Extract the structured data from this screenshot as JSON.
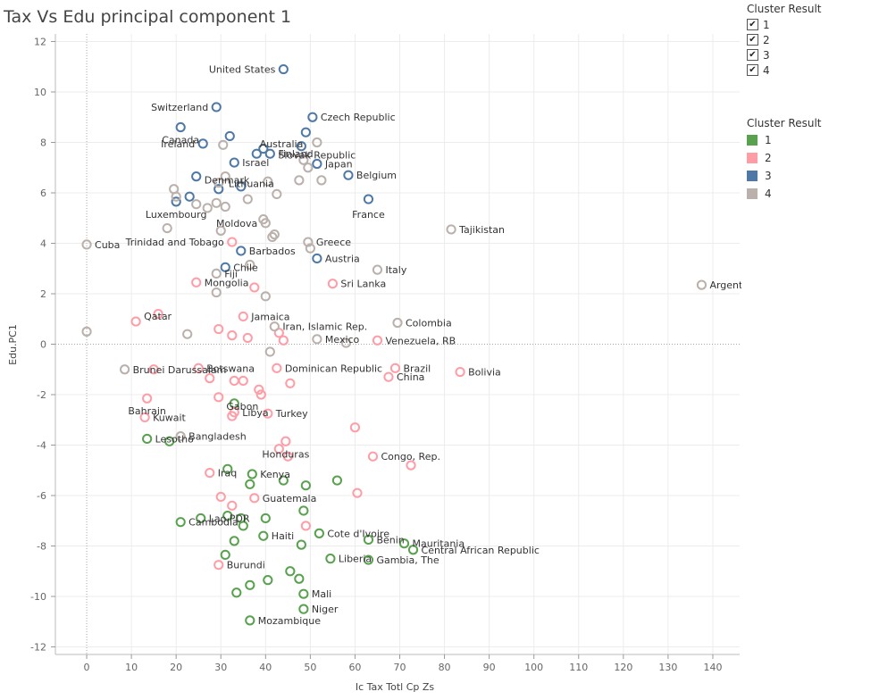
{
  "title": "Tax Vs Edu principal component 1",
  "filter_legend": {
    "title": "Cluster Result",
    "items": [
      {
        "label": "1",
        "check": "✔"
      },
      {
        "label": "2",
        "check": "✔"
      },
      {
        "label": "3",
        "check": "✔"
      },
      {
        "label": "4",
        "check": "✔"
      }
    ]
  },
  "color_legend": {
    "title": "Cluster Result",
    "items": [
      {
        "label": "1",
        "color": "#59a14f"
      },
      {
        "label": "2",
        "color": "#ff9da7"
      },
      {
        "label": "3",
        "color": "#4e79a7"
      },
      {
        "label": "4",
        "color": "#bab0ac"
      }
    ]
  },
  "chart_data": {
    "type": "scatter",
    "xlabel": "Ic Tax Totl Cp Zs",
    "ylabel": "Edu.PC1",
    "xlim": [
      -7,
      146
    ],
    "ylim": [
      -12.3,
      12.3
    ],
    "xticks": [
      0,
      10,
      20,
      30,
      40,
      50,
      60,
      70,
      80,
      90,
      100,
      110,
      120,
      130,
      140
    ],
    "yticks": [
      12,
      10,
      8,
      6,
      4,
      2,
      0,
      -2,
      -4,
      -6,
      -8,
      -10,
      -12
    ],
    "grid": true,
    "legend": "right",
    "clusters": [
      {
        "label": "1",
        "color": "#59a14f",
        "points": [
          {
            "x": 13.5,
            "y": -3.75,
            "label": "Lesotho"
          },
          {
            "x": 18.5,
            "y": -3.85
          },
          {
            "x": 33,
            "y": -2.35
          },
          {
            "x": 31.5,
            "y": -4.95
          },
          {
            "x": 37,
            "y": -5.15,
            "label": "Kenya"
          },
          {
            "x": 36.5,
            "y": -5.55
          },
          {
            "x": 44,
            "y": -5.4
          },
          {
            "x": 49,
            "y": -5.6
          },
          {
            "x": 56,
            "y": -5.4
          },
          {
            "x": 21,
            "y": -7.05,
            "label": "Cambodia"
          },
          {
            "x": 25.5,
            "y": -6.9,
            "label": "Lao PDR"
          },
          {
            "x": 31.5,
            "y": -6.8
          },
          {
            "x": 34.5,
            "y": -6.9
          },
          {
            "x": 35,
            "y": -7.2
          },
          {
            "x": 40,
            "y": -6.9
          },
          {
            "x": 48.5,
            "y": -6.6
          },
          {
            "x": 33,
            "y": -7.8
          },
          {
            "x": 39.5,
            "y": -7.6,
            "label": "Haiti"
          },
          {
            "x": 48,
            "y": -7.95
          },
          {
            "x": 52,
            "y": -7.5,
            "label": "Cote d'Ivoire"
          },
          {
            "x": 63,
            "y": -7.75,
            "label": "Benin"
          },
          {
            "x": 71,
            "y": -7.9,
            "label": "Mauritania"
          },
          {
            "x": 73,
            "y": -8.15,
            "label": "Central African Republic"
          },
          {
            "x": 31,
            "y": -8.35
          },
          {
            "x": 54.5,
            "y": -8.5,
            "label": "Liberia"
          },
          {
            "x": 63,
            "y": -8.55,
            "label": "Gambia, The"
          },
          {
            "x": 45.5,
            "y": -9.0
          },
          {
            "x": 47.5,
            "y": -9.3
          },
          {
            "x": 40.5,
            "y": -9.35
          },
          {
            "x": 36.5,
            "y": -9.55
          },
          {
            "x": 33.5,
            "y": -9.85
          },
          {
            "x": 48.5,
            "y": -9.9,
            "label": "Mali"
          },
          {
            "x": 48.5,
            "y": -10.5,
            "label": "Niger"
          },
          {
            "x": 36.5,
            "y": -10.95,
            "label": "Mozambique"
          }
        ]
      },
      {
        "label": "2",
        "color": "#ff9da7",
        "points": [
          {
            "x": 32.5,
            "y": 4.05,
            "label": "Trinidad and Tobago"
          },
          {
            "x": 24.5,
            "y": 2.45,
            "label": "Mongolia"
          },
          {
            "x": 37.5,
            "y": 2.25
          },
          {
            "x": 55,
            "y": 2.4,
            "label": "Sri Lanka"
          },
          {
            "x": 11,
            "y": 0.9,
            "label": "Qatar"
          },
          {
            "x": 16,
            "y": 1.2
          },
          {
            "x": 35,
            "y": 1.1,
            "label": "Jamaica"
          },
          {
            "x": 29.5,
            "y": 0.6
          },
          {
            "x": 32.5,
            "y": 0.35
          },
          {
            "x": 36,
            "y": 0.25
          },
          {
            "x": 43,
            "y": 0.45
          },
          {
            "x": 44,
            "y": 0.15
          },
          {
            "x": 65,
            "y": 0.15,
            "label": "Venezuela, RB"
          },
          {
            "x": 25,
            "y": -0.95,
            "label": "Botswana"
          },
          {
            "x": 15,
            "y": -1.0
          },
          {
            "x": 42.5,
            "y": -0.95,
            "label": "Dominican Republic"
          },
          {
            "x": 69,
            "y": -0.95,
            "label": "Brazil"
          },
          {
            "x": 67.5,
            "y": -1.3,
            "label": "China"
          },
          {
            "x": 83.5,
            "y": -1.1,
            "label": "Bolivia"
          },
          {
            "x": 27.5,
            "y": -1.35
          },
          {
            "x": 33,
            "y": -1.45
          },
          {
            "x": 35,
            "y": -1.45
          },
          {
            "x": 45.5,
            "y": -1.55
          },
          {
            "x": 38.5,
            "y": -1.8
          },
          {
            "x": 39,
            "y": -2.0,
            "label": "Gabon"
          },
          {
            "x": 13.5,
            "y": -2.15,
            "label": "Bahrain"
          },
          {
            "x": 29.5,
            "y": -2.1
          },
          {
            "x": 33,
            "y": -2.7,
            "label": "Libya"
          },
          {
            "x": 32.5,
            "y": -2.85
          },
          {
            "x": 13,
            "y": -2.9,
            "label": "Kuwait"
          },
          {
            "x": 40.5,
            "y": -2.75,
            "label": "Turkey"
          },
          {
            "x": 60,
            "y": -3.3
          },
          {
            "x": 44.5,
            "y": -3.85,
            "label": "Honduras"
          },
          {
            "x": 43,
            "y": -4.15
          },
          {
            "x": 45,
            "y": -4.45
          },
          {
            "x": 64,
            "y": -4.45,
            "label": "Congo, Rep."
          },
          {
            "x": 72.5,
            "y": -4.8
          },
          {
            "x": 27.5,
            "y": -5.1,
            "label": "Iraq"
          },
          {
            "x": 30,
            "y": -6.05
          },
          {
            "x": 37.5,
            "y": -6.1,
            "label": "Guatemala"
          },
          {
            "x": 60.5,
            "y": -5.9
          },
          {
            "x": 32.5,
            "y": -6.4
          },
          {
            "x": 49,
            "y": -7.2
          },
          {
            "x": 29.5,
            "y": -8.75,
            "label": "Burundi"
          }
        ]
      },
      {
        "label": "3",
        "color": "#4e79a7",
        "points": [
          {
            "x": 44,
            "y": 10.9,
            "label": "United States"
          },
          {
            "x": 29,
            "y": 9.4,
            "label": "Switzerland"
          },
          {
            "x": 50.5,
            "y": 9.0,
            "label": "Czech Republic"
          },
          {
            "x": 21,
            "y": 8.6,
            "label": "Canada"
          },
          {
            "x": 49,
            "y": 8.4,
            "label": "Australia"
          },
          {
            "x": 32,
            "y": 8.25
          },
          {
            "x": 26,
            "y": 7.95,
            "label": "Ireland"
          },
          {
            "x": 39.5,
            "y": 7.75
          },
          {
            "x": 48,
            "y": 7.85
          },
          {
            "x": 38,
            "y": 7.55
          },
          {
            "x": 41,
            "y": 7.55,
            "label": "Finland"
          },
          {
            "x": 33,
            "y": 7.2,
            "label": "Israel"
          },
          {
            "x": 51.5,
            "y": 7.15,
            "label": "Japan"
          },
          {
            "x": 24.5,
            "y": 6.65,
            "label": "Denmark"
          },
          {
            "x": 58.5,
            "y": 6.7,
            "label": "Belgium"
          },
          {
            "x": 34.5,
            "y": 6.25
          },
          {
            "x": 29.5,
            "y": 6.15
          },
          {
            "x": 23,
            "y": 5.85
          },
          {
            "x": 20,
            "y": 5.65,
            "label": "Luxembourg"
          },
          {
            "x": 63,
            "y": 5.75,
            "label": "France"
          },
          {
            "x": 34.5,
            "y": 3.7,
            "label": "Barbados"
          },
          {
            "x": 51.5,
            "y": 3.4,
            "label": "Austria"
          },
          {
            "x": 31,
            "y": 3.05,
            "label": "Chile"
          }
        ]
      },
      {
        "label": "4",
        "color": "#bab0ac",
        "points": [
          {
            "x": 51.5,
            "y": 8.0,
            "label": "Slovak Republic"
          },
          {
            "x": 30.5,
            "y": 7.9
          },
          {
            "x": 48.5,
            "y": 7.3
          },
          {
            "x": 49.5,
            "y": 7.0
          },
          {
            "x": 31,
            "y": 6.65
          },
          {
            "x": 19.5,
            "y": 6.15
          },
          {
            "x": 20,
            "y": 5.85
          },
          {
            "x": 29.5,
            "y": 6.4
          },
          {
            "x": 40.5,
            "y": 6.45
          },
          {
            "x": 47.5,
            "y": 6.5
          },
          {
            "x": 52.5,
            "y": 6.5
          },
          {
            "x": 42.5,
            "y": 5.95,
            "label": "Lithuania"
          },
          {
            "x": 36,
            "y": 5.75
          },
          {
            "x": 29,
            "y": 5.6
          },
          {
            "x": 24.5,
            "y": 5.55
          },
          {
            "x": 27,
            "y": 5.4
          },
          {
            "x": 31,
            "y": 5.45
          },
          {
            "x": 39.5,
            "y": 4.95
          },
          {
            "x": 40,
            "y": 4.8,
            "label": "Moldova"
          },
          {
            "x": 18,
            "y": 4.6
          },
          {
            "x": 30,
            "y": 4.5
          },
          {
            "x": 42,
            "y": 4.35
          },
          {
            "x": 41.5,
            "y": 4.25
          },
          {
            "x": 49.5,
            "y": 4.05,
            "label": "Greece"
          },
          {
            "x": 50,
            "y": 3.8
          },
          {
            "x": 0,
            "y": 3.95,
            "label": "Cuba"
          },
          {
            "x": 81.5,
            "y": 4.55,
            "label": "Tajikistan"
          },
          {
            "x": 36.5,
            "y": 3.15
          },
          {
            "x": 29,
            "y": 2.8,
            "label": "Fiji"
          },
          {
            "x": 65,
            "y": 2.95,
            "label": "Italy"
          },
          {
            "x": 29,
            "y": 2.05
          },
          {
            "x": 40,
            "y": 1.9
          },
          {
            "x": 137.5,
            "y": 2.35,
            "label": "Argentina"
          },
          {
            "x": 69.5,
            "y": 0.85,
            "label": "Colombia"
          },
          {
            "x": 42,
            "y": 0.7,
            "label": "Iran, Islamic Rep."
          },
          {
            "x": 0,
            "y": 0.5
          },
          {
            "x": 22.5,
            "y": 0.4
          },
          {
            "x": 51.5,
            "y": 0.2,
            "label": "Mexico"
          },
          {
            "x": 58,
            "y": 0.05
          },
          {
            "x": 41,
            "y": -0.3
          },
          {
            "x": 8.5,
            "y": -1.0,
            "label": "Brunei Darussalam"
          },
          {
            "x": 21,
            "y": -3.65,
            "label": "Bangladesh"
          }
        ]
      }
    ]
  }
}
